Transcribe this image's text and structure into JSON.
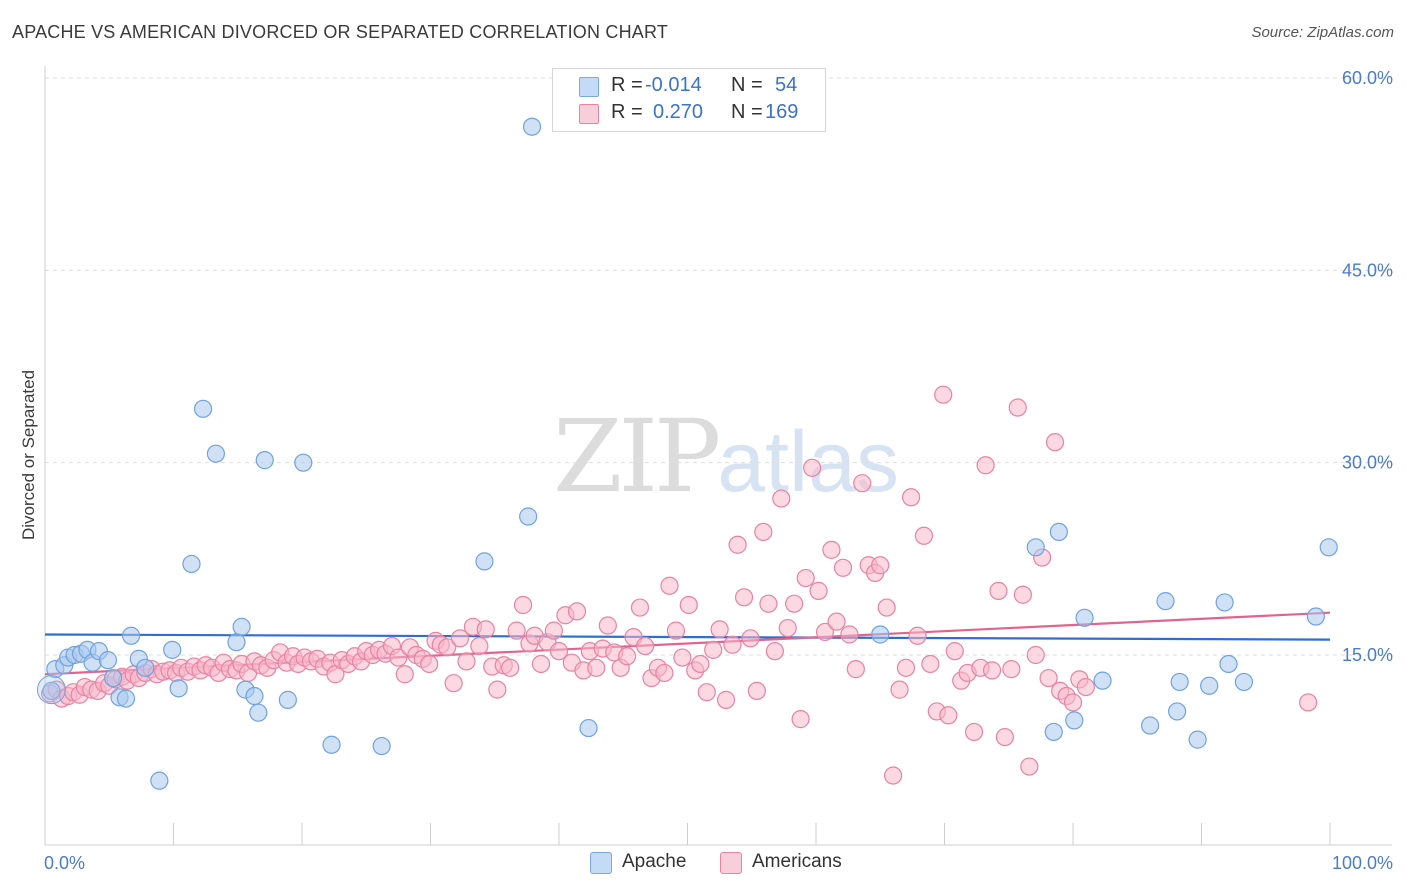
{
  "header": {
    "title": "APACHE VS AMERICAN DIVORCED OR SEPARATED CORRELATION CHART",
    "source": "Source: ZipAtlas.com"
  },
  "watermark": {
    "zip": "ZIP",
    "atlas": "atlas"
  },
  "legend_top": {
    "rows": [
      {
        "r_label": "R =",
        "r_value": "-0.014",
        "n_label": "N =",
        "n_value": "54",
        "color": "#a9c8ef"
      },
      {
        "r_label": "R =",
        "r_value": "0.270",
        "n_label": "N =",
        "n_value": "169",
        "color": "#f7b8cb"
      }
    ]
  },
  "legend_bottom": {
    "items": [
      {
        "label": "Apache",
        "color": "#a9c8ef"
      },
      {
        "label": "Americans",
        "color": "#f7b8cb"
      }
    ]
  },
  "chart_data": {
    "type": "scatter",
    "title": "APACHE VS AMERICAN DIVORCED OR SEPARATED CORRELATION CHART",
    "xlabel": "",
    "ylabel": "Divorced or Separated",
    "xlim": [
      0,
      100
    ],
    "ylim": [
      0,
      60
    ],
    "x_ticks": [
      {
        "value": 0,
        "label": "0.0%"
      },
      {
        "value": 100,
        "label": "100.0%"
      }
    ],
    "y_ticks": [
      {
        "value": 15,
        "label": "15.0%"
      },
      {
        "value": 30,
        "label": "30.0%"
      },
      {
        "value": 45,
        "label": "45.0%"
      },
      {
        "value": 60,
        "label": "60.0%"
      }
    ],
    "grid": true,
    "legend_position": "top-center",
    "series": [
      {
        "name": "Apache",
        "color": "#6fa3e0",
        "fill": "#a9c8ef",
        "trend": [
          [
            0,
            16.6
          ],
          [
            100,
            16.2
          ]
        ],
        "points": [
          [
            0.5,
            12.2
          ],
          [
            0.8,
            13.9
          ],
          [
            1.5,
            14.2
          ],
          [
            1.8,
            14.8
          ],
          [
            2.3,
            15.0
          ],
          [
            2.8,
            15.1
          ],
          [
            3.3,
            15.4
          ],
          [
            3.7,
            14.4
          ],
          [
            4.2,
            15.3
          ],
          [
            4.9,
            14.6
          ],
          [
            5.3,
            13.2
          ],
          [
            5.8,
            11.7
          ],
          [
            6.3,
            11.6
          ],
          [
            6.7,
            16.5
          ],
          [
            7.3,
            14.7
          ],
          [
            7.8,
            14.0
          ],
          [
            8.9,
            5.2
          ],
          [
            9.9,
            15.4
          ],
          [
            10.4,
            12.4
          ],
          [
            11.4,
            22.1
          ],
          [
            12.3,
            34.2
          ],
          [
            13.3,
            30.7
          ],
          [
            14.9,
            16.0
          ],
          [
            15.3,
            17.2
          ],
          [
            15.6,
            12.3
          ],
          [
            16.3,
            11.8
          ],
          [
            16.6,
            10.5
          ],
          [
            17.1,
            30.2
          ],
          [
            18.9,
            11.5
          ],
          [
            20.1,
            30.0
          ],
          [
            22.3,
            8.0
          ],
          [
            26.2,
            7.9
          ],
          [
            34.2,
            22.3
          ],
          [
            37.6,
            25.8
          ],
          [
            37.9,
            56.2
          ],
          [
            42.3,
            9.3
          ],
          [
            65.0,
            16.6
          ],
          [
            77.1,
            23.4
          ],
          [
            78.5,
            9.0
          ],
          [
            78.9,
            24.6
          ],
          [
            80.1,
            9.9
          ],
          [
            80.9,
            17.9
          ],
          [
            82.3,
            13.0
          ],
          [
            86.0,
            9.5
          ],
          [
            87.2,
            19.2
          ],
          [
            88.1,
            10.6
          ],
          [
            88.3,
            12.9
          ],
          [
            89.7,
            8.4
          ],
          [
            90.6,
            12.6
          ],
          [
            91.8,
            19.1
          ],
          [
            92.1,
            14.3
          ],
          [
            93.3,
            12.9
          ],
          [
            98.9,
            18.0
          ],
          [
            99.9,
            23.4
          ]
        ]
      },
      {
        "name": "Americans",
        "color": "#e982a3",
        "fill": "#f7b8cb",
        "trend": [
          [
            0,
            13.5
          ],
          [
            100,
            18.3
          ]
        ],
        "points": [
          [
            0.4,
            12.0
          ],
          [
            0.9,
            12.3
          ],
          [
            1.3,
            11.6
          ],
          [
            1.8,
            11.8
          ],
          [
            2.2,
            12.1
          ],
          [
            2.7,
            11.9
          ],
          [
            3.1,
            12.5
          ],
          [
            3.6,
            12.3
          ],
          [
            4.1,
            12.2
          ],
          [
            4.6,
            12.8
          ],
          [
            5.0,
            12.6
          ],
          [
            5.5,
            13.1
          ],
          [
            6.0,
            13.3
          ],
          [
            6.4,
            13.0
          ],
          [
            6.9,
            13.5
          ],
          [
            7.3,
            13.2
          ],
          [
            7.8,
            13.6
          ],
          [
            8.3,
            13.9
          ],
          [
            8.7,
            13.5
          ],
          [
            9.2,
            13.7
          ],
          [
            9.7,
            13.8
          ],
          [
            10.2,
            13.6
          ],
          [
            10.6,
            14.0
          ],
          [
            11.1,
            13.7
          ],
          [
            11.6,
            14.1
          ],
          [
            12.1,
            13.8
          ],
          [
            12.5,
            14.2
          ],
          [
            13.0,
            14.0
          ],
          [
            13.5,
            13.6
          ],
          [
            13.9,
            14.4
          ],
          [
            14.4,
            13.9
          ],
          [
            14.9,
            13.8
          ],
          [
            15.3,
            14.3
          ],
          [
            15.8,
            13.6
          ],
          [
            16.3,
            14.5
          ],
          [
            16.8,
            14.2
          ],
          [
            17.3,
            14.0
          ],
          [
            17.8,
            14.6
          ],
          [
            18.3,
            15.2
          ],
          [
            18.8,
            14.4
          ],
          [
            19.3,
            14.9
          ],
          [
            19.7,
            14.3
          ],
          [
            20.2,
            14.8
          ],
          [
            20.7,
            14.5
          ],
          [
            21.2,
            14.7
          ],
          [
            21.7,
            14.1
          ],
          [
            22.2,
            14.4
          ],
          [
            22.6,
            13.5
          ],
          [
            23.1,
            14.6
          ],
          [
            23.6,
            14.3
          ],
          [
            24.1,
            14.9
          ],
          [
            24.6,
            14.5
          ],
          [
            25.0,
            15.3
          ],
          [
            25.5,
            15.0
          ],
          [
            26.0,
            15.4
          ],
          [
            26.5,
            15.1
          ],
          [
            27.0,
            15.7
          ],
          [
            27.5,
            14.8
          ],
          [
            28.0,
            13.5
          ],
          [
            28.4,
            15.6
          ],
          [
            28.9,
            15.0
          ],
          [
            29.4,
            14.7
          ],
          [
            29.9,
            14.3
          ],
          [
            30.4,
            16.1
          ],
          [
            30.8,
            15.8
          ],
          [
            31.3,
            15.6
          ],
          [
            31.8,
            12.8
          ],
          [
            32.3,
            16.3
          ],
          [
            32.8,
            14.5
          ],
          [
            33.3,
            17.2
          ],
          [
            33.8,
            15.7
          ],
          [
            34.3,
            17.0
          ],
          [
            34.8,
            14.1
          ],
          [
            35.2,
            12.3
          ],
          [
            35.7,
            14.2
          ],
          [
            36.2,
            14.0
          ],
          [
            36.7,
            16.9
          ],
          [
            37.2,
            18.9
          ],
          [
            37.7,
            15.9
          ],
          [
            38.1,
            16.5
          ],
          [
            38.6,
            14.3
          ],
          [
            39.1,
            16.0
          ],
          [
            39.6,
            16.9
          ],
          [
            40.0,
            15.3
          ],
          [
            40.5,
            18.1
          ],
          [
            41.0,
            14.4
          ],
          [
            41.4,
            18.4
          ],
          [
            41.9,
            13.8
          ],
          [
            42.4,
            15.3
          ],
          [
            42.9,
            14.0
          ],
          [
            43.4,
            15.5
          ],
          [
            43.8,
            17.3
          ],
          [
            44.3,
            15.2
          ],
          [
            44.8,
            14.0
          ],
          [
            45.3,
            14.9
          ],
          [
            45.8,
            16.4
          ],
          [
            46.3,
            18.7
          ],
          [
            46.7,
            15.7
          ],
          [
            47.2,
            13.2
          ],
          [
            47.7,
            14.0
          ],
          [
            48.2,
            13.6
          ],
          [
            48.6,
            20.4
          ],
          [
            49.1,
            16.9
          ],
          [
            49.6,
            14.8
          ],
          [
            50.1,
            18.9
          ],
          [
            50.6,
            13.8
          ],
          [
            51.0,
            14.3
          ],
          [
            51.5,
            12.1
          ],
          [
            52.0,
            15.4
          ],
          [
            52.5,
            17.0
          ],
          [
            53.0,
            11.5
          ],
          [
            53.5,
            15.8
          ],
          [
            53.9,
            23.6
          ],
          [
            54.4,
            19.5
          ],
          [
            54.9,
            16.3
          ],
          [
            55.4,
            12.2
          ],
          [
            55.9,
            24.6
          ],
          [
            56.3,
            19.0
          ],
          [
            56.8,
            15.3
          ],
          [
            57.3,
            27.2
          ],
          [
            57.8,
            17.1
          ],
          [
            58.3,
            19.0
          ],
          [
            58.8,
            10.0
          ],
          [
            59.2,
            21.0
          ],
          [
            59.7,
            29.6
          ],
          [
            60.2,
            20.0
          ],
          [
            60.7,
            16.8
          ],
          [
            61.2,
            23.2
          ],
          [
            61.6,
            17.6
          ],
          [
            62.1,
            21.8
          ],
          [
            62.6,
            16.6
          ],
          [
            63.1,
            13.9
          ],
          [
            63.6,
            28.4
          ],
          [
            64.1,
            22.0
          ],
          [
            64.6,
            21.4
          ],
          [
            65.0,
            22.0
          ],
          [
            65.5,
            18.7
          ],
          [
            66.0,
            5.6
          ],
          [
            66.5,
            12.3
          ],
          [
            67.0,
            14.0
          ],
          [
            67.4,
            27.3
          ],
          [
            67.9,
            16.5
          ],
          [
            68.4,
            24.3
          ],
          [
            68.9,
            14.3
          ],
          [
            69.4,
            10.6
          ],
          [
            69.9,
            35.3
          ],
          [
            70.3,
            10.3
          ],
          [
            70.8,
            15.3
          ],
          [
            71.3,
            13.0
          ],
          [
            71.8,
            13.6
          ],
          [
            72.3,
            9.0
          ],
          [
            72.8,
            14.0
          ],
          [
            73.2,
            29.8
          ],
          [
            73.7,
            13.8
          ],
          [
            74.2,
            20.0
          ],
          [
            74.7,
            8.6
          ],
          [
            75.2,
            13.9
          ],
          [
            75.7,
            34.3
          ],
          [
            76.1,
            19.7
          ],
          [
            76.6,
            6.3
          ],
          [
            77.1,
            15.0
          ],
          [
            77.6,
            22.6
          ],
          [
            78.1,
            13.2
          ],
          [
            78.6,
            31.6
          ],
          [
            79.0,
            12.2
          ],
          [
            79.5,
            11.8
          ],
          [
            80.0,
            11.3
          ],
          [
            80.5,
            13.1
          ],
          [
            81.0,
            12.5
          ],
          [
            98.3,
            11.3
          ]
        ]
      }
    ]
  }
}
